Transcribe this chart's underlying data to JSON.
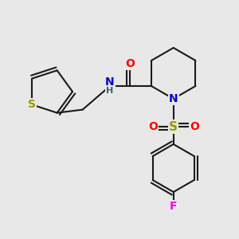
{
  "background_color": "#e8e8e8",
  "figsize": [
    3.0,
    3.0
  ],
  "dpi": 100,
  "colors": {
    "bond": "#1a1a1a",
    "S": "#999900",
    "N": "#0000dd",
    "O": "#ff0000",
    "F": "#ff00ff",
    "H": "#336666"
  }
}
